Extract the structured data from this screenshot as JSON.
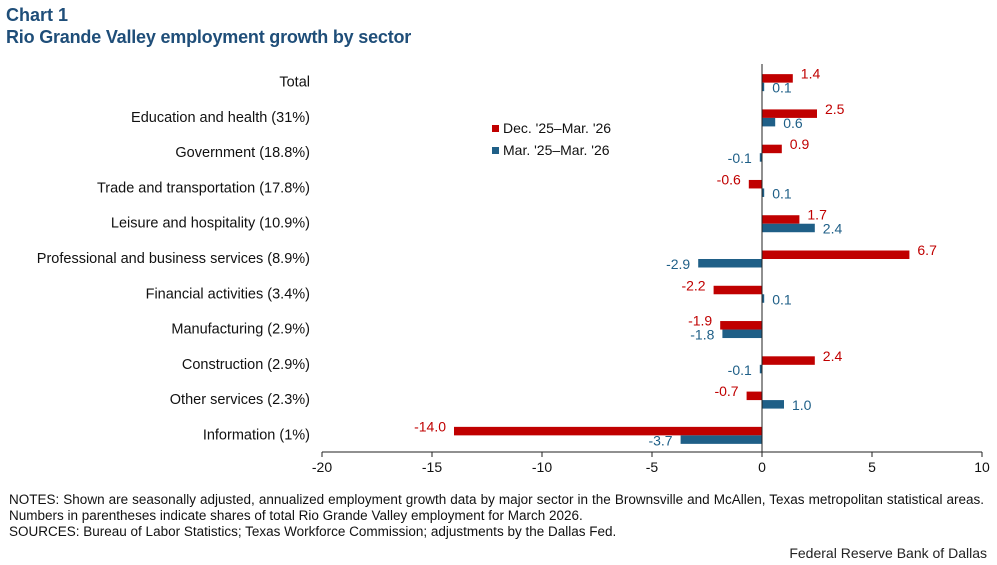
{
  "header": {
    "chart_number": "Chart 1",
    "title": "Rio Grande Valley employment growth by sector"
  },
  "footer": {
    "notes": "NOTES: Shown are seasonally adjusted, annualized employment growth data by major sector in the Brownsville and McAllen, Texas metropolitan statistical areas. Numbers in parentheses indicate shares of total Rio Grande Valley employment for March 2026.",
    "sources": "SOURCES: Bureau of Labor Statistics; Texas Workforce Commission; adjustments by the Dallas Fed.",
    "credit": "Federal Reserve Bank of Dallas"
  },
  "colors": {
    "series1": "#c00000",
    "series2": "#1f5f87",
    "title": "#1f4e79"
  },
  "chart_data": {
    "type": "bar",
    "orientation": "horizontal",
    "title": "Rio Grande Valley employment growth by sector",
    "categories": [
      "Total",
      "Education and health (31%)",
      "Government (18.8%)",
      "Trade and transportation (17.8%)",
      "Leisure and hospitality (10.9%)",
      "Professional and business services (8.9%)",
      "Financial activities (3.4%)",
      "Manufacturing (2.9%)",
      "Construction (2.9%)",
      "Other services (2.3%)",
      "Information (1%)"
    ],
    "series": [
      {
        "name": "Dec. '25–Mar. '26",
        "color": "#c00000",
        "values": [
          1.4,
          2.5,
          0.9,
          -0.6,
          1.7,
          6.7,
          -2.2,
          -1.9,
          2.4,
          -0.7,
          -14.0
        ],
        "labels": [
          "1.4",
          "2.5",
          "0.9",
          "-0.6",
          "1.7",
          "6.7",
          "-2.2",
          "-1.9",
          "2.4",
          "-0.7",
          "-14.0"
        ]
      },
      {
        "name": "Mar. '25–Mar. '26",
        "color": "#1f5f87",
        "values": [
          0.1,
          0.6,
          -0.1,
          0.1,
          2.4,
          -2.9,
          0.1,
          -1.8,
          -0.1,
          1.0,
          -3.7
        ],
        "labels": [
          "0.1",
          "0.6",
          "-0.1",
          "0.1",
          "2.4",
          "-2.9",
          "0.1",
          "-1.8",
          "-0.1",
          "1.0",
          "-3.7"
        ]
      }
    ],
    "xlim": [
      -20,
      10
    ],
    "xticks": [
      -20,
      -15,
      -10,
      -5,
      0,
      5,
      10
    ],
    "xtick_labels": [
      "-20",
      "-15",
      "-10",
      "-5",
      "0",
      "5",
      "10"
    ],
    "grid": false,
    "legend_position": "top-center"
  }
}
